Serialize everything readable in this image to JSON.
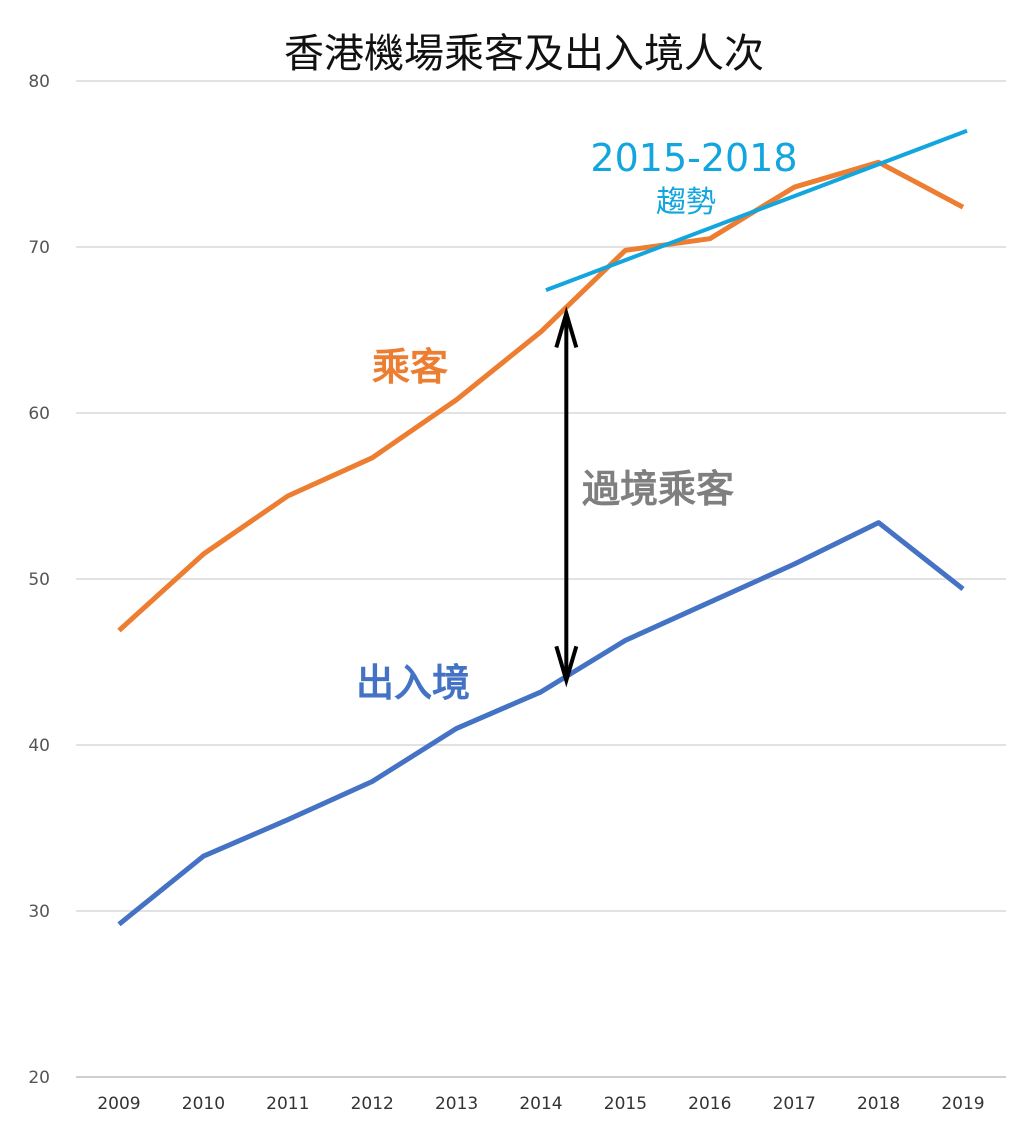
{
  "chart_data": {
    "type": "line",
    "title": "香港機場乘客及出入境人次",
    "xlabel": "",
    "ylabel": "",
    "categories": [
      "2009",
      "2010",
      "2011",
      "2012",
      "2013",
      "2014",
      "2015",
      "2016",
      "2017",
      "2018",
      "2019"
    ],
    "y_ticks": [
      "20",
      "30",
      "40",
      "50",
      "60",
      "70",
      "80"
    ],
    "ylim": [
      20,
      80
    ],
    "grid": true,
    "legend": "none",
    "series": [
      {
        "name": "乘客",
        "color": "#ED7D31",
        "values": [
          46.9,
          51.5,
          55.0,
          57.3,
          60.8,
          64.9,
          69.8,
          70.5,
          73.6,
          75.1,
          72.4
        ]
      },
      {
        "name": "出入境",
        "color": "#4472C4",
        "values": [
          29.2,
          33.3,
          35.5,
          37.8,
          41.0,
          43.2,
          46.3,
          48.6,
          50.9,
          53.4,
          49.4
        ]
      }
    ],
    "trendline": {
      "label_line1": "2015-2018",
      "label_line2": "趨勢",
      "color": "#12A5DE",
      "x_start": 2014.0,
      "y_start": 67.4,
      "x_end": 2019.0,
      "y_end": 77.0
    },
    "arrow": {
      "label": "過境乘客",
      "color": "#000000",
      "label_color": "#7F7F7F",
      "x": 2014.3,
      "y_top": 66.0,
      "y_bottom": 43.9
    }
  }
}
